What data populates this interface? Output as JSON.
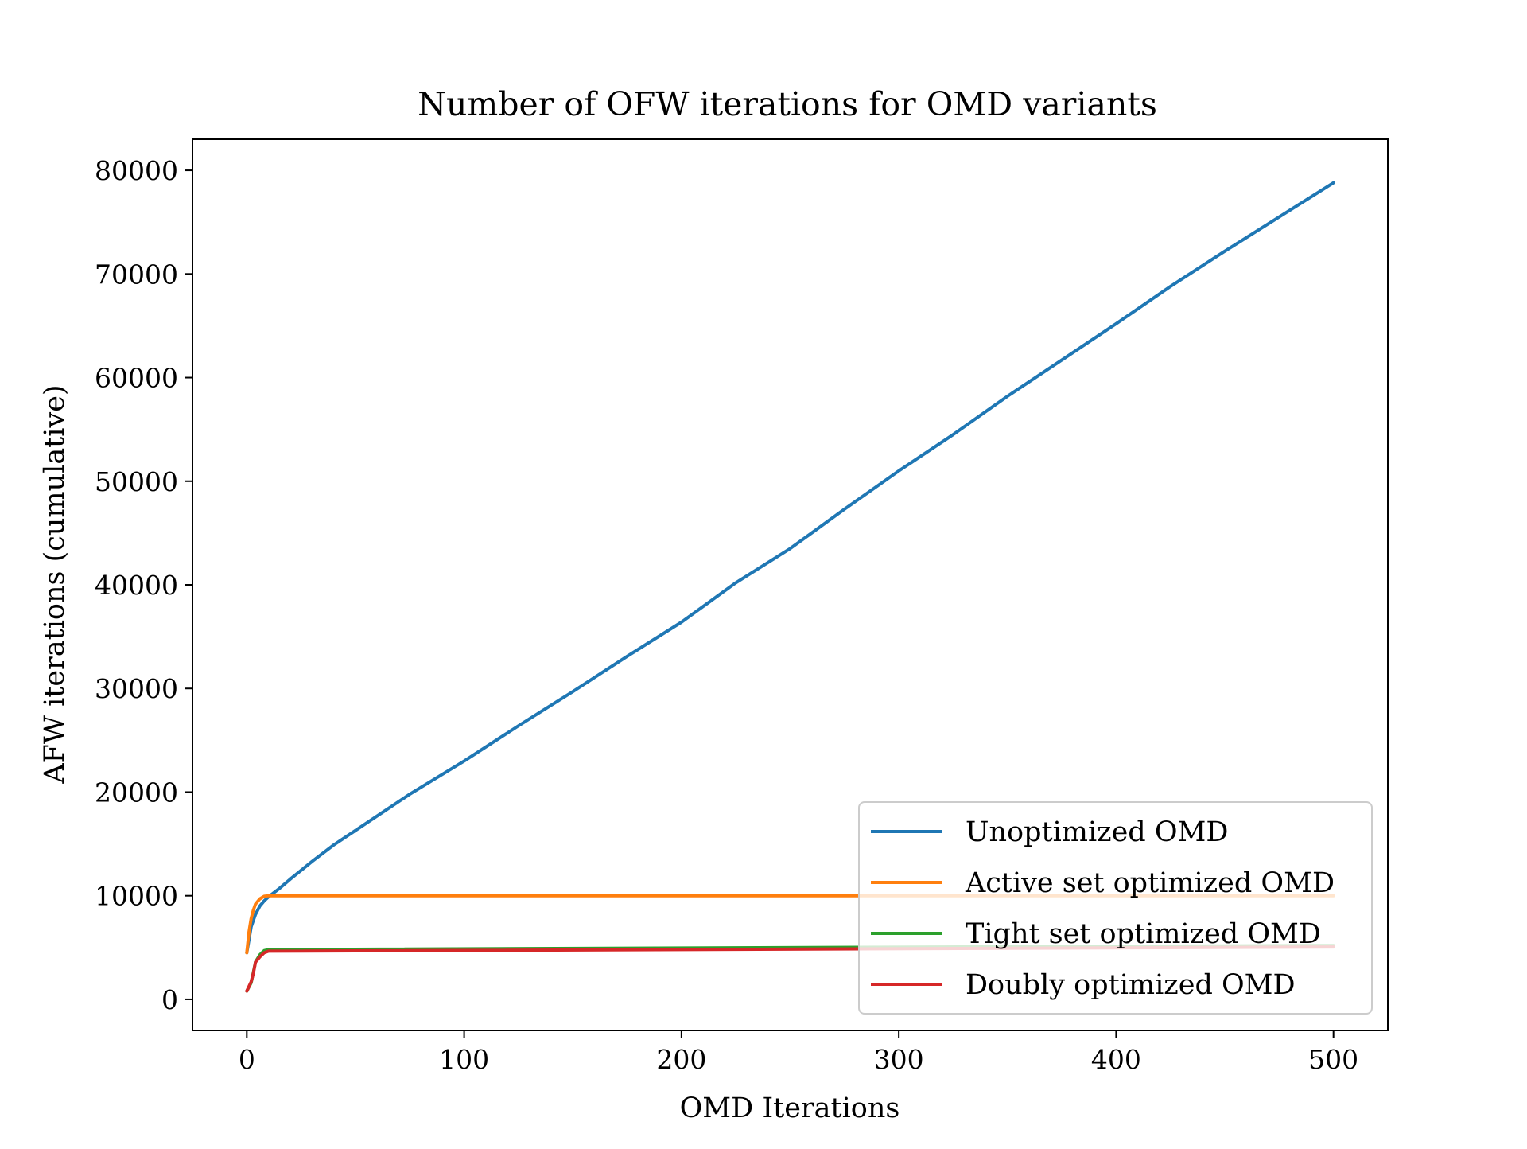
{
  "chart_data": {
    "type": "line",
    "title": "Number of OFW iterations for OMD variants",
    "xlabel": "OMD Iterations",
    "ylabel": "AFW iterations (cumulative)",
    "xlim": [
      -25,
      525
    ],
    "ylim": [
      -3000,
      83000
    ],
    "xticks": [
      0,
      100,
      200,
      300,
      400,
      500
    ],
    "yticks": [
      0,
      10000,
      20000,
      30000,
      40000,
      50000,
      60000,
      70000,
      80000
    ],
    "xtick_labels": [
      "0",
      "100",
      "200",
      "300",
      "400",
      "500"
    ],
    "ytick_labels": [
      "0",
      "10000",
      "20000",
      "30000",
      "40000",
      "50000",
      "60000",
      "70000",
      "80000"
    ],
    "grid": false,
    "legend_position": "lower-right",
    "series": [
      {
        "name": "Unoptimized OMD",
        "color": "#1f77b4",
        "x": [
          0,
          2,
          4,
          6,
          8,
          10,
          15,
          20,
          30,
          40,
          50,
          75,
          100,
          125,
          150,
          175,
          200,
          225,
          250,
          275,
          300,
          325,
          350,
          375,
          400,
          425,
          450,
          475,
          500
        ],
        "y": [
          4500,
          7000,
          8200,
          9000,
          9500,
          9900,
          10700,
          11600,
          13300,
          14900,
          16300,
          19800,
          23000,
          26400,
          29700,
          33100,
          36400,
          40200,
          43500,
          47300,
          51000,
          54500,
          58200,
          61700,
          65200,
          68800,
          72200,
          75500,
          78800
        ]
      },
      {
        "name": "Active set optimized OMD",
        "color": "#ff7f0e",
        "x": [
          0,
          1,
          2,
          3,
          4,
          6,
          8,
          10,
          500
        ],
        "y": [
          4500,
          6500,
          7800,
          8600,
          9200,
          9700,
          9950,
          10000,
          10000
        ]
      },
      {
        "name": "Tight set optimized OMD",
        "color": "#2ca02c",
        "x": [
          0,
          2,
          4,
          6,
          8,
          10,
          500
        ],
        "y": [
          800,
          1600,
          3600,
          4300,
          4700,
          4800,
          5200
        ]
      },
      {
        "name": "Doubly optimized OMD",
        "color": "#d62728",
        "x": [
          0,
          2,
          3,
          4,
          6,
          8,
          10,
          500
        ],
        "y": [
          800,
          1700,
          2500,
          3600,
          4100,
          4500,
          4650,
          5050
        ]
      }
    ]
  }
}
